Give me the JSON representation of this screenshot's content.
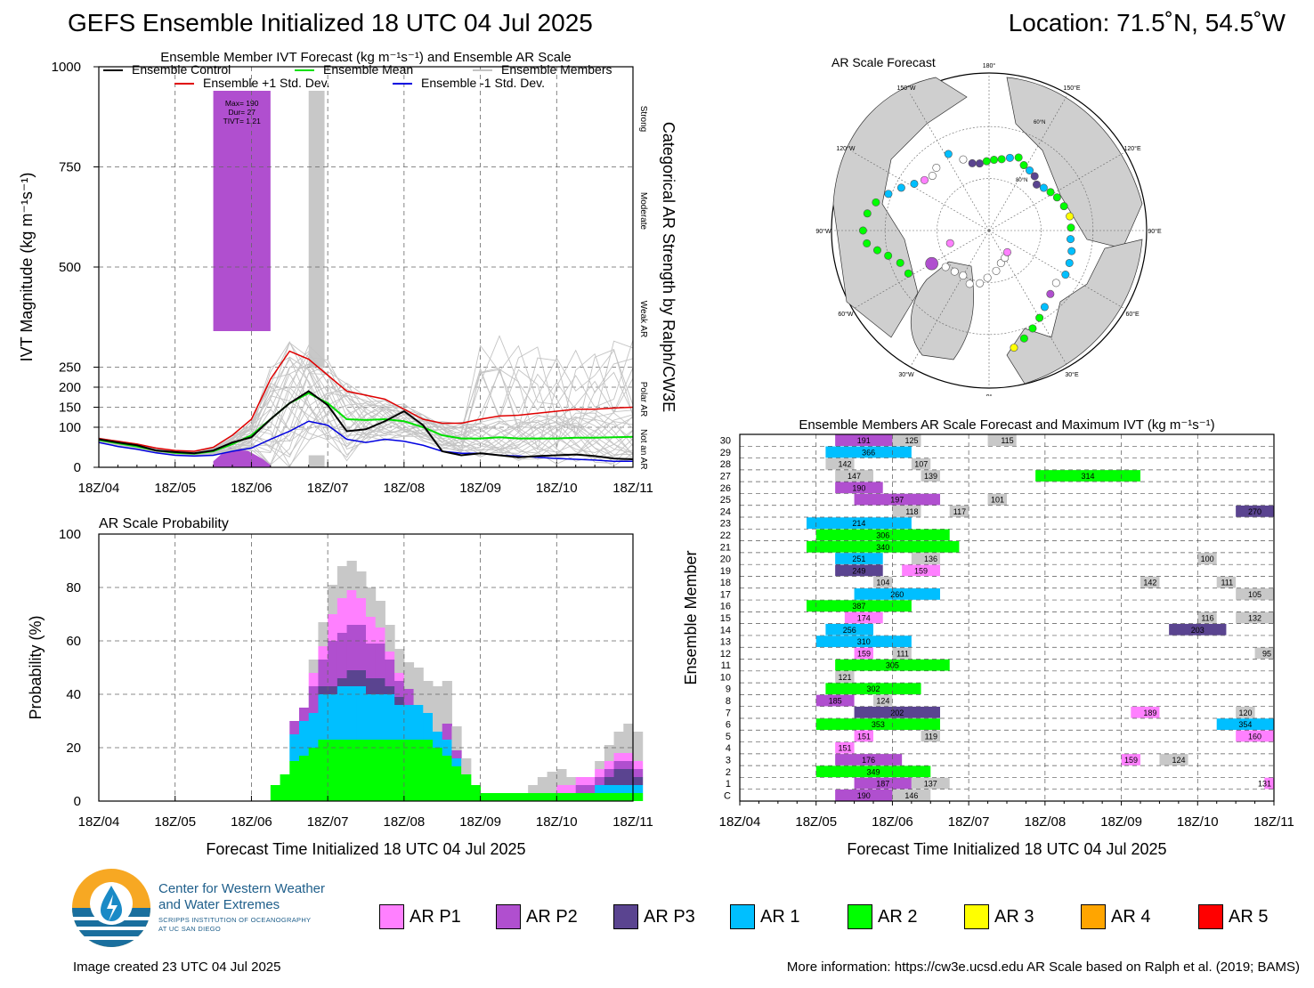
{
  "header": {
    "title": "GEFS Ensemble Initialized 18 UTC 04 Jul 2025",
    "location": "Location: 71.5˚N, 54.5˚W"
  },
  "footer": {
    "created": "Image created 23 UTC 04 Jul 2025",
    "more_info": "More information: https://cw3e.ucsd.edu AR Scale based on Ralph et al. (2019; BAMS)"
  },
  "logo": {
    "line1": "Center for Western Weather",
    "line2": "and Water Extremes",
    "line3": "SCRIPPS INSTITUTION OF OCEANOGRAPHY",
    "line4": "AT UC SAN DIEGO"
  },
  "colors": {
    "AR P1": "#ff80ff",
    "AR P2": "#b04fcf",
    "AR P3": "#5a4490",
    "AR 1": "#00bfff",
    "AR 2": "#00ff00",
    "AR 3": "#ffff00",
    "AR 4": "#ffa500",
    "AR 5": "#ff0000",
    "NotAR": "#c8c8c8"
  },
  "legend": [
    "AR P1",
    "AR P2",
    "AR P3",
    "AR 1",
    "AR 2",
    "AR 3",
    "AR 4",
    "AR 5"
  ],
  "chart_data": [
    {
      "id": "ivt",
      "type": "line",
      "title": "Ensemble Member IVT Forecast (kg m⁻¹s⁻¹) and Ensemble AR Scale",
      "ylabel": "IVT Magnitude (kg m⁻¹s⁻¹)",
      "right_label": "Categorical AR Strength by Ralph/CW3E",
      "category_labels": [
        "Strong",
        "Moderate",
        "Weak AR",
        "Polar AR",
        "Not an AR"
      ],
      "ylim": [
        0,
        1000
      ],
      "yticks": [
        0,
        100,
        150,
        200,
        250,
        500,
        750,
        1000
      ],
      "ytick_labels": [
        "0",
        "100",
        "150",
        "200",
        "250",
        "500",
        "750",
        "1000"
      ],
      "xticks": [
        "18Z/04",
        "18Z/05",
        "18Z/06",
        "18Z/07",
        "18Z/08",
        "18Z/09",
        "18Z/10",
        "18Z/11"
      ],
      "legend": [
        "Ensemble Control",
        "Ensemble Mean",
        "Ensemble Members",
        "Ensemble +1 Std. Dev.",
        "Ensemble -1 Std. Dev."
      ],
      "x_hours": [
        0,
        6,
        12,
        18,
        24,
        30,
        36,
        42,
        48,
        54,
        60,
        66,
        72,
        78,
        84,
        90,
        96,
        102,
        108,
        114,
        120,
        126,
        132,
        138,
        144,
        150,
        156,
        162,
        168
      ],
      "control": [
        70,
        62,
        55,
        42,
        38,
        35,
        42,
        62,
        75,
        120,
        160,
        190,
        155,
        90,
        95,
        115,
        140,
        105,
        40,
        30,
        35,
        30,
        25,
        28,
        30,
        32,
        28,
        22,
        20
      ],
      "mean": [
        68,
        60,
        52,
        42,
        36,
        34,
        40,
        58,
        80,
        120,
        160,
        185,
        160,
        120,
        118,
        120,
        115,
        100,
        80,
        72,
        72,
        75,
        72,
        72,
        72,
        74,
        74,
        75,
        76
      ],
      "plus_std": [
        72,
        65,
        58,
        48,
        42,
        40,
        50,
        80,
        120,
        220,
        290,
        270,
        230,
        190,
        180,
        170,
        145,
        120,
        110,
        110,
        120,
        128,
        130,
        135,
        140,
        145,
        145,
        148,
        150
      ],
      "minus_std": [
        62,
        52,
        45,
        36,
        30,
        28,
        30,
        40,
        48,
        70,
        90,
        115,
        105,
        70,
        62,
        70,
        65,
        55,
        40,
        35,
        35,
        30,
        28,
        25,
        22,
        20,
        18,
        15,
        15
      ],
      "annotation": [
        "Max= 190",
        "Dur= 27",
        "TIVT= 1.21"
      ]
    },
    {
      "id": "prob",
      "type": "bar",
      "title": "AR Scale Probability",
      "ylabel": "Probability (%)",
      "xlabel": "Forecast Time Initialized 18 UTC 04 Jul 2025",
      "ylim": [
        0,
        100
      ],
      "yticks": [
        0,
        20,
        40,
        60,
        80,
        100
      ],
      "xticks": [
        "18Z/04",
        "18Z/05",
        "18Z/06",
        "18Z/07",
        "18Z/08",
        "18Z/09",
        "18Z/10",
        "18Z/11"
      ],
      "step_hours": 3
    },
    {
      "id": "members",
      "type": "bar",
      "title": "Ensemble Members AR Scale Forecast and Maximum IVT (kg m⁻¹s⁻¹)",
      "ylabel": "Ensemble Member",
      "xlabel": "Forecast Time Initialized 18 UTC 04 Jul 2025",
      "rows": [
        "C",
        "1",
        "2",
        "3",
        "4",
        "5",
        "6",
        "7",
        "8",
        "9",
        "10",
        "11",
        "12",
        "13",
        "14",
        "15",
        "16",
        "17",
        "18",
        "19",
        "20",
        "21",
        "22",
        "23",
        "24",
        "25",
        "26",
        "27",
        "28",
        "29",
        "30"
      ],
      "xticks": [
        "18Z/04",
        "18Z/05",
        "18Z/06",
        "18Z/07",
        "18Z/08",
        "18Z/09",
        "18Z/10",
        "18Z/11"
      ]
    },
    {
      "id": "map",
      "type": "map",
      "title": "AR Scale Forecast",
      "lon_labels": [
        "180°",
        "150°E",
        "120°E",
        "90°E",
        "60°E",
        "30°E",
        "0°",
        "30°W",
        "60°W",
        "90°W",
        "120°W",
        "150°W"
      ],
      "lat_labels": [
        "60°N",
        "80°N"
      ]
    }
  ]
}
